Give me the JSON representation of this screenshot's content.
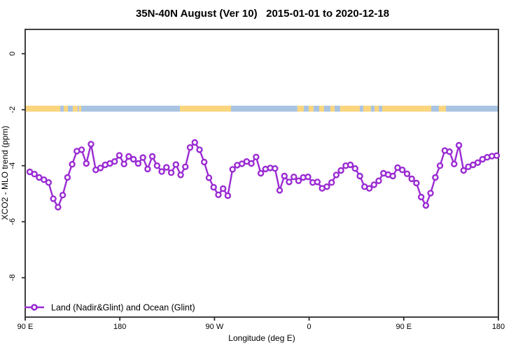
{
  "chart_data": {
    "type": "line",
    "title": "35N-40N August (Ver 10)   2015-01-01 to 2020-12-18",
    "xlabel": "Longitude (deg E)",
    "ylabel": "XCO2 - MLO trend (ppm)",
    "legend_label": "Land (Nadir&Glint) and Ocean (Glint)",
    "legend_position": "bottom-left-inside",
    "grid": false,
    "x_axis": {
      "range": [
        90,
        540
      ],
      "note_units": "degrees east, continuous wrap around globe",
      "ticks": [
        {
          "lon": 90,
          "label": "90 E"
        },
        {
          "lon": 180,
          "label": "180"
        },
        {
          "lon": 270,
          "label": "90 W"
        },
        {
          "lon": 360,
          "label": "0"
        },
        {
          "lon": 450,
          "label": "90 E"
        },
        {
          "lon": 540,
          "label": "180"
        }
      ]
    },
    "y_axis": {
      "ylim": [
        -9.4,
        0.87
      ],
      "ticks": [
        {
          "value": 0,
          "label": "0"
        },
        {
          "value": -2,
          "label": "-2"
        },
        {
          "value": -4,
          "label": "-4"
        },
        {
          "value": -6,
          "label": "-6"
        },
        {
          "value": -8,
          "label": "-8"
        }
      ]
    },
    "series": [
      {
        "name": "Land (Nadir&Glint) and Ocean (Glint)",
        "color": "#9a2bd3",
        "marker": "open-circle",
        "lon_start": 94.3,
        "lon_step": 4.485,
        "values": [
          -4.22,
          -4.3,
          -4.42,
          -4.5,
          -4.6,
          -5.18,
          -5.48,
          -5.05,
          -4.42,
          -3.95,
          -3.48,
          -3.43,
          -3.92,
          -3.23,
          -4.15,
          -4.08,
          -3.97,
          -3.92,
          -3.85,
          -3.63,
          -3.94,
          -3.67,
          -3.77,
          -3.92,
          -3.71,
          -4.12,
          -3.67,
          -4.0,
          -4.21,
          -4.06,
          -4.25,
          -3.96,
          -4.33,
          -4.04,
          -3.35,
          -3.17,
          -3.43,
          -3.87,
          -4.43,
          -4.77,
          -5.04,
          -4.82,
          -5.07,
          -4.13,
          -3.98,
          -3.93,
          -3.85,
          -3.92,
          -3.69,
          -4.27,
          -4.12,
          -4.08,
          -4.1,
          -4.88,
          -4.37,
          -4.58,
          -4.4,
          -4.54,
          -4.42,
          -4.4,
          -4.6,
          -4.58,
          -4.81,
          -4.75,
          -4.6,
          -4.33,
          -4.17,
          -4.0,
          -3.97,
          -4.1,
          -4.37,
          -4.75,
          -4.81,
          -4.68,
          -4.54,
          -4.27,
          -4.32,
          -4.37,
          -4.07,
          -4.15,
          -4.29,
          -4.47,
          -4.62,
          -5.12,
          -5.42,
          -4.98,
          -4.42,
          -4.0,
          -3.46,
          -3.5,
          -3.94,
          -3.27,
          -4.17,
          -4.04,
          -3.97,
          -3.89,
          -3.77,
          -3.7,
          -3.66,
          -3.64
        ]
      }
    ],
    "surface_band": {
      "y_ppm": -2,
      "land_color": "#fbd57e",
      "ocean_color": "#a9c4e2",
      "segments": [
        {
          "from": 90.0,
          "to": 123.3,
          "type": "land"
        },
        {
          "from": 123.3,
          "to": 126.6,
          "type": "ocean"
        },
        {
          "from": 126.6,
          "to": 130.6,
          "type": "land"
        },
        {
          "from": 130.6,
          "to": 135.3,
          "type": "ocean"
        },
        {
          "from": 135.3,
          "to": 139.9,
          "type": "land"
        },
        {
          "from": 139.9,
          "to": 141.2,
          "type": "ocean"
        },
        {
          "from": 141.2,
          "to": 143.2,
          "type": "land"
        },
        {
          "from": 143.2,
          "to": 237.1,
          "type": "ocean"
        },
        {
          "from": 237.1,
          "to": 285.7,
          "type": "land"
        },
        {
          "from": 285.7,
          "to": 348.9,
          "type": "ocean"
        },
        {
          "from": 348.9,
          "to": 354.9,
          "type": "land"
        },
        {
          "from": 354.9,
          "to": 359.6,
          "type": "ocean"
        },
        {
          "from": 359.6,
          "to": 364.2,
          "type": "land"
        },
        {
          "from": 364.2,
          "to": 369.6,
          "type": "ocean"
        },
        {
          "from": 369.6,
          "to": 374.2,
          "type": "land"
        },
        {
          "from": 374.2,
          "to": 380.2,
          "type": "ocean"
        },
        {
          "from": 380.2,
          "to": 384.2,
          "type": "land"
        },
        {
          "from": 384.2,
          "to": 389.5,
          "type": "ocean"
        },
        {
          "from": 389.5,
          "to": 408.2,
          "type": "land"
        },
        {
          "from": 408.2,
          "to": 411.5,
          "type": "ocean"
        },
        {
          "from": 411.5,
          "to": 418.8,
          "type": "land"
        },
        {
          "from": 418.8,
          "to": 422.2,
          "type": "ocean"
        },
        {
          "from": 422.2,
          "to": 426.2,
          "type": "land"
        },
        {
          "from": 426.2,
          "to": 429.5,
          "type": "ocean"
        },
        {
          "from": 429.5,
          "to": 476.1,
          "type": "land"
        },
        {
          "from": 476.1,
          "to": 483.4,
          "type": "ocean"
        },
        {
          "from": 483.4,
          "to": 490.1,
          "type": "land"
        },
        {
          "from": 490.1,
          "to": 540.0,
          "type": "ocean"
        }
      ]
    },
    "colors": {
      "series_purple": "#9a2bd3",
      "band_land": "#fbd57e",
      "band_ocean": "#a9c4e2",
      "axis": "#2b2b2b",
      "background": "#ffffff"
    }
  }
}
